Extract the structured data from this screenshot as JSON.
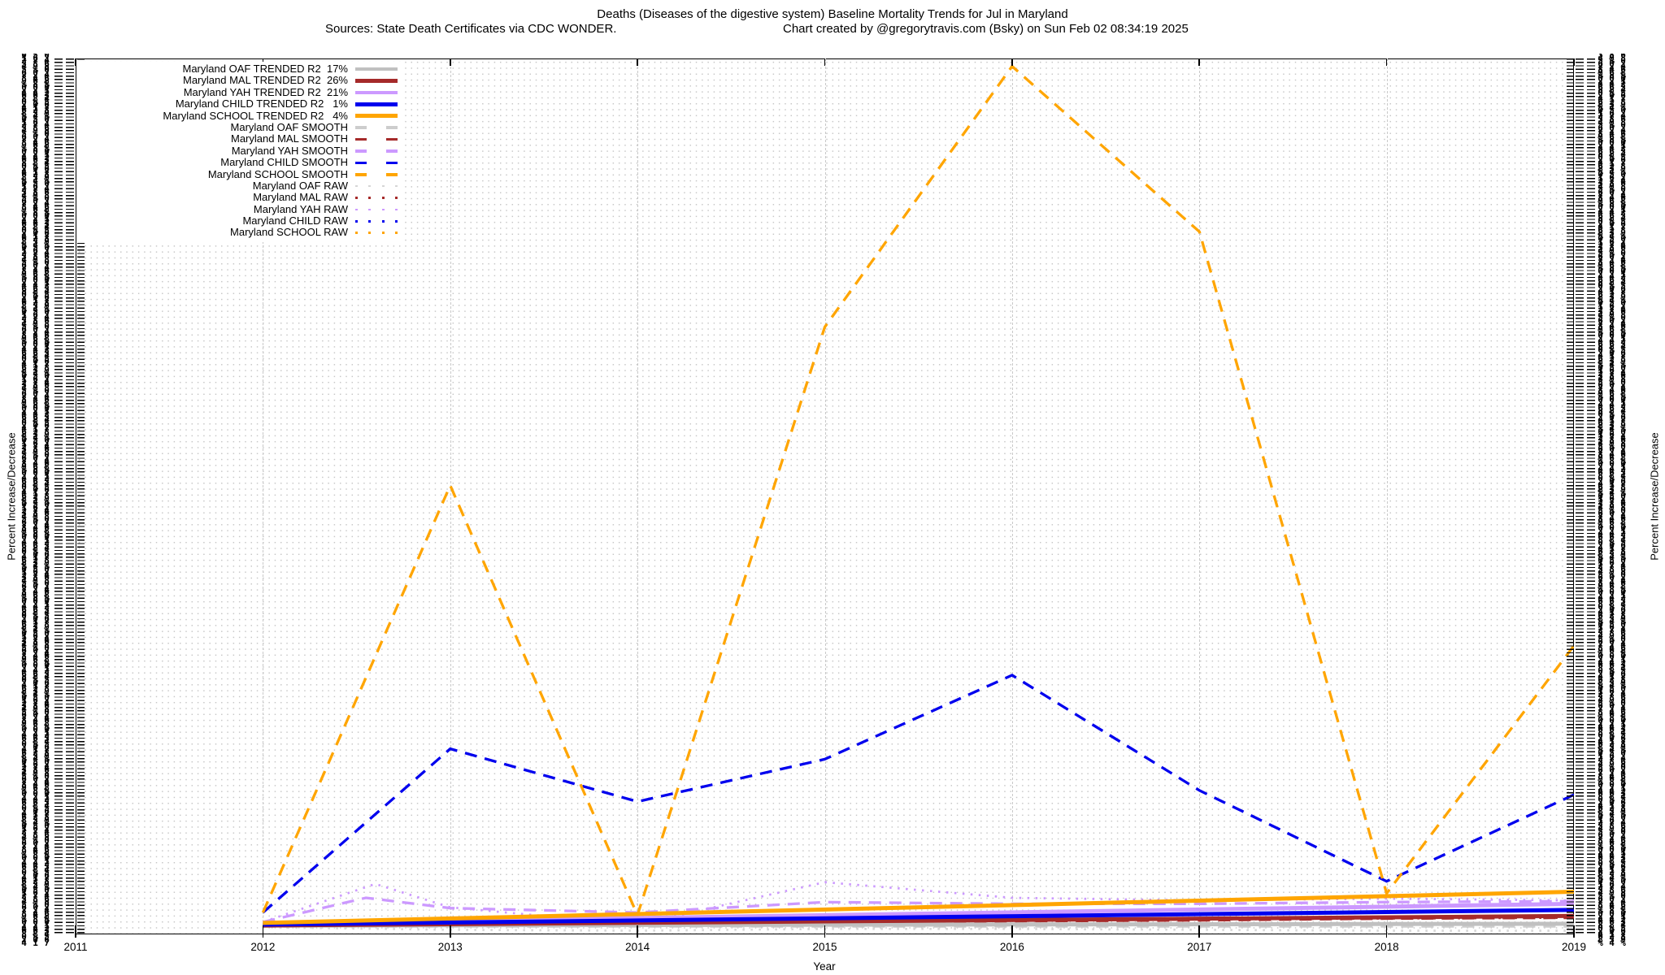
{
  "page": {
    "title": "Deaths (Diseases of the digestive system)  Baseline Mortality Trends for Jul in Maryland",
    "sources_text": "Sources: State Death Certificates via CDC WONDER.",
    "credit_text": "Chart created by @gregorytravis.com (Bsky) on Sun Feb 02 08:34:19 2025"
  },
  "axes": {
    "x_label": "Year",
    "y_label_left": "Percent Increase/Decrease",
    "y_label_right": "Percent Increase/Decrease",
    "x_tick_labels": [
      "2011",
      "2012",
      "2013",
      "2014",
      "2015",
      "2016",
      "2017",
      "2018",
      "2019"
    ],
    "y_tick_note": "y-axis tick labels are densely overlapped and illegible in the source image",
    "y_tick_texture_chars": "0123456789%0246802468%"
  },
  "legend": {
    "items": [
      {
        "label": "Maryland OAF TRENDED R2  17%",
        "style": "solid",
        "color": "#C0C0C0"
      },
      {
        "label": "Maryland MAL TRENDED R2  26%",
        "style": "solid",
        "color": "#A52A2A"
      },
      {
        "label": "Maryland YAH TRENDED R2  21%",
        "style": "solid",
        "color": "#CC99FF"
      },
      {
        "label": "Maryland CHILD TRENDED R2   1%",
        "style": "solid",
        "color": "#0000EE"
      },
      {
        "label": "Maryland SCHOOL TRENDED R2   4%",
        "style": "solid",
        "color": "#FFA500"
      },
      {
        "label": "Maryland OAF SMOOTH",
        "style": "dashed",
        "color": "#CDCDCD"
      },
      {
        "label": "Maryland MAL SMOOTH",
        "style": "dashed",
        "color": "#A52A2A"
      },
      {
        "label": "Maryland YAH SMOOTH",
        "style": "dashed",
        "color": "#CC99FF"
      },
      {
        "label": "Maryland CHILD SMOOTH",
        "style": "dashed",
        "color": "#0000EE"
      },
      {
        "label": "Maryland SCHOOL SMOOTH",
        "style": "dashed",
        "color": "#FFA500"
      },
      {
        "label": "Maryland OAF RAW",
        "style": "dotted",
        "color": "#D6D6D6"
      },
      {
        "label": "Maryland MAL RAW",
        "style": "dotted",
        "color": "#A52A2A"
      },
      {
        "label": "Maryland YAH RAW",
        "style": "dotted",
        "color": "#CC99FF"
      },
      {
        "label": "Maryland CHILD RAW",
        "style": "dotted",
        "color": "#0000EE"
      },
      {
        "label": "Maryland SCHOOL RAW",
        "style": "dotted",
        "color": "#FFA500"
      }
    ]
  },
  "chart_data": {
    "type": "line",
    "title": "Deaths (Diseases of the digestive system)  Baseline Mortality Trends for Jul in Maryland",
    "xlabel": "Year",
    "ylabel": "Percent Increase/Decrease",
    "x_range": [
      2011,
      2019
    ],
    "x_ticks": [
      2011,
      2012,
      2013,
      2014,
      2015,
      2016,
      2017,
      2018,
      2019
    ],
    "grid": "fine dotted grid with dashed vertical lines at each year",
    "legend_position": "top-left inside plot",
    "value_units": "percent increase/decrease; axis tick labels illegible in source, values estimated as % of plot height above the 2012 baseline (0)",
    "series": [
      {
        "name": "Maryland SCHOOL RAW",
        "role": "RAW",
        "style": "dotted",
        "color": "#FFA500",
        "x": [
          2012,
          2013,
          2014,
          2015,
          2016,
          2017,
          2018,
          2019
        ],
        "values": [
          0.2,
          0.7,
          1.2,
          1.7,
          2.2,
          2.7,
          3.2,
          3.8
        ]
      },
      {
        "name": "Maryland CHILD RAW",
        "role": "RAW",
        "style": "dotted",
        "color": "#0000EE",
        "x": [
          2012,
          2013,
          2014,
          2015,
          2016,
          2017,
          2018,
          2019
        ],
        "values": [
          0.0,
          0.2,
          0.5,
          0.7,
          1.0,
          1.2,
          1.5,
          1.7
        ]
      },
      {
        "name": "Maryland MAL RAW",
        "role": "RAW",
        "style": "dotted",
        "color": "#A52A2A",
        "x": [
          2012,
          2013,
          2014,
          2015,
          2016,
          2017,
          2018,
          2019
        ],
        "values": [
          0.0,
          0.1,
          0.3,
          0.4,
          0.5,
          0.6,
          0.7,
          0.8
        ]
      },
      {
        "name": "Maryland OAF RAW",
        "role": "RAW",
        "style": "dotted",
        "color": "#D6D6D6",
        "x": [
          2012,
          2013,
          2014,
          2015,
          2016,
          2017,
          2018,
          2019
        ],
        "values": [
          -0.3,
          -0.6,
          -0.7,
          -0.5,
          -0.5,
          -0.6,
          -0.7,
          -0.7
        ]
      },
      {
        "name": "Maryland YAH RAW",
        "role": "RAW",
        "style": "dotted",
        "color": "#CC99FF",
        "x": [
          2012,
          2012.6,
          2013,
          2014,
          2015,
          2016,
          2017,
          2018,
          2019
        ],
        "values": [
          0.3,
          4.7,
          2.0,
          0.0,
          4.9,
          3.1,
          2.8,
          3.0,
          2.8
        ]
      },
      {
        "name": "Maryland OAF SMOOTH",
        "role": "SMOOTH",
        "style": "dashed",
        "color": "#CDCDCD",
        "x": [
          2012,
          2013,
          2014,
          2015,
          2016,
          2017,
          2018,
          2019
        ],
        "values": [
          -0.2,
          -0.2,
          -0.2,
          -0.2,
          -0.2,
          -0.2,
          -0.2,
          -0.2
        ]
      },
      {
        "name": "Maryland MAL SMOOTH",
        "role": "SMOOTH",
        "style": "dashed",
        "color": "#A52A2A",
        "x": [
          2012,
          2013,
          2014,
          2015,
          2016,
          2017,
          2018,
          2019
        ],
        "values": [
          0.0,
          0.1,
          0.2,
          0.3,
          0.4,
          0.5,
          0.7,
          0.8
        ]
      },
      {
        "name": "Maryland YAH SMOOTH",
        "role": "SMOOTH",
        "style": "dashed",
        "color": "#CC99FF",
        "x": [
          2012,
          2012.55,
          2013,
          2014,
          2015,
          2016,
          2017,
          2018,
          2019
        ],
        "values": [
          0.3,
          3.1,
          1.9,
          1.4,
          2.6,
          2.4,
          2.4,
          2.6,
          2.7
        ]
      },
      {
        "name": "Maryland CHILD SMOOTH",
        "role": "SMOOTH",
        "style": "dashed",
        "color": "#0000EE",
        "x": [
          2012,
          2013,
          2014,
          2015,
          2016,
          2017,
          2018,
          2019
        ],
        "values": [
          1.4,
          20.3,
          14.2,
          19.1,
          28.8,
          15.5,
          5.0,
          15.0
        ]
      },
      {
        "name": "Maryland SCHOOL SMOOTH",
        "role": "SMOOTH",
        "style": "dashed",
        "color": "#FFA500",
        "x": [
          2012,
          2013,
          2014,
          2015,
          2016,
          2017,
          2018,
          2019
        ],
        "values": [
          1.4,
          50.7,
          1.1,
          69.0,
          99.1,
          80.0,
          3.6,
          32.2
        ]
      },
      {
        "name": "Maryland OAF TRENDED",
        "role": "TRENDED",
        "r2": "17%",
        "style": "solid",
        "color": "#C0C0C0",
        "x": [
          2012,
          2019
        ],
        "values": [
          -0.1,
          0.1
        ]
      },
      {
        "name": "Maryland MAL TRENDED",
        "role": "TRENDED",
        "r2": "26%",
        "style": "solid",
        "color": "#A52A2A",
        "x": [
          2012,
          2019
        ],
        "values": [
          -0.1,
          1.0
        ]
      },
      {
        "name": "Maryland YAH TRENDED",
        "role": "TRENDED",
        "r2": "21%",
        "style": "solid",
        "color": "#CC99FF",
        "x": [
          2012,
          2019
        ],
        "values": [
          0.1,
          2.4
        ]
      },
      {
        "name": "Maryland CHILD TRENDED",
        "role": "TRENDED",
        "r2": "1%",
        "style": "solid",
        "color": "#0000EE",
        "x": [
          2012,
          2019
        ],
        "values": [
          0.0,
          1.7
        ]
      },
      {
        "name": "Maryland SCHOOL TRENDED",
        "role": "TRENDED",
        "r2": "4%",
        "style": "solid",
        "color": "#FFA500",
        "x": [
          2012,
          2019
        ],
        "values": [
          0.2,
          3.8
        ]
      }
    ]
  }
}
